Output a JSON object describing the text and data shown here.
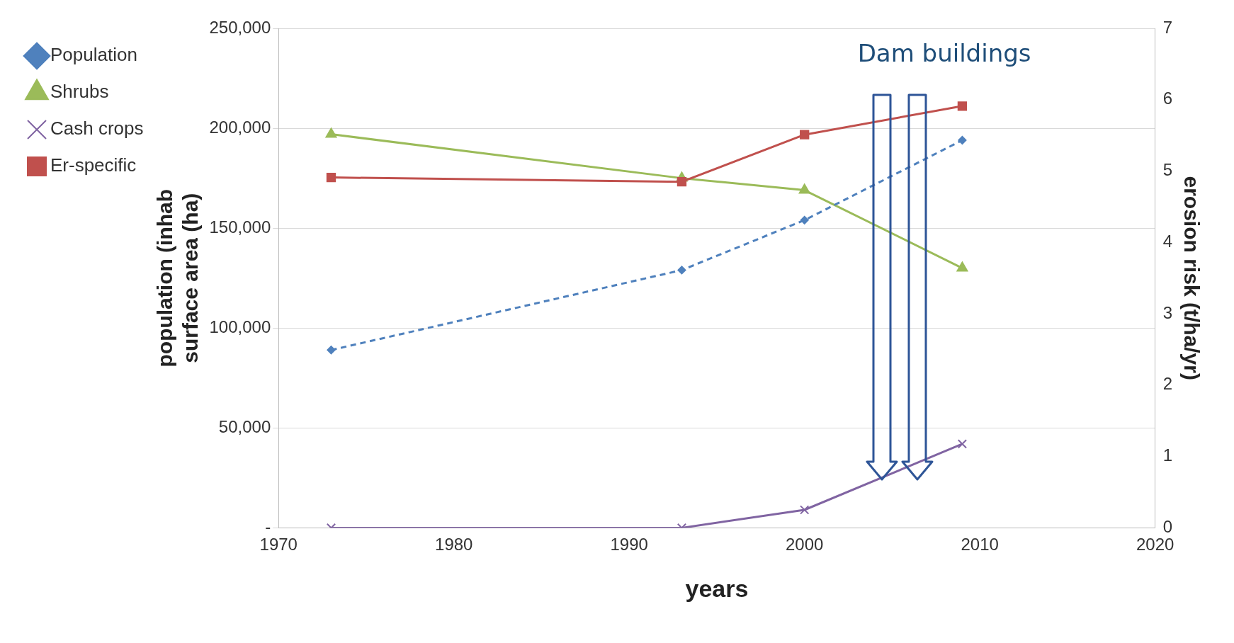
{
  "chart_data": {
    "type": "line",
    "xlabel": "years",
    "ylabel": "population (inhab\nsurface area (ha)",
    "y2label": "erosion risk (t/ha/yr)",
    "x": [
      1973,
      1993,
      2000,
      2009
    ],
    "series": [
      {
        "name": "Population",
        "color": "#4f81bd",
        "values": [
          89000,
          129000,
          154000,
          194000
        ],
        "marker": "diamond",
        "line_style": "dashed"
      },
      {
        "name": "Shrubs",
        "color": "#9bbb59",
        "values": [
          197000,
          175000,
          169000,
          130000
        ],
        "marker": "triangle",
        "line_style": "solid"
      },
      {
        "name": "Cash crops",
        "color": "#8064a2",
        "values": [
          0,
          0,
          9000,
          42000
        ],
        "marker": "cross",
        "line_style": "solid"
      },
      {
        "name": "Er-specific",
        "color": "#c0504d",
        "values": [
          4.91,
          4.85,
          5.51,
          5.91
        ],
        "marker": "square",
        "line_style": "solid",
        "axis": "y2"
      }
    ],
    "xlim": [
      1970,
      2020
    ],
    "xticks": [
      1970,
      1980,
      1990,
      2000,
      2010,
      2020
    ],
    "ylim": [
      0,
      250000
    ],
    "yticks": [
      {
        "value": 0,
        "label": "-"
      },
      {
        "value": 50000,
        "label": "50,000"
      },
      {
        "value": 100000,
        "label": "100,000"
      },
      {
        "value": 150000,
        "label": "150,000"
      },
      {
        "value": 200000,
        "label": "200,000"
      },
      {
        "value": 250000,
        "label": "250,000"
      }
    ],
    "y2lim": [
      0,
      7
    ],
    "y2ticks": [
      0,
      1,
      2,
      3,
      4,
      5,
      6,
      7
    ],
    "grid": "y",
    "legend": "left",
    "annotations": [
      "Dam buildings"
    ]
  }
}
